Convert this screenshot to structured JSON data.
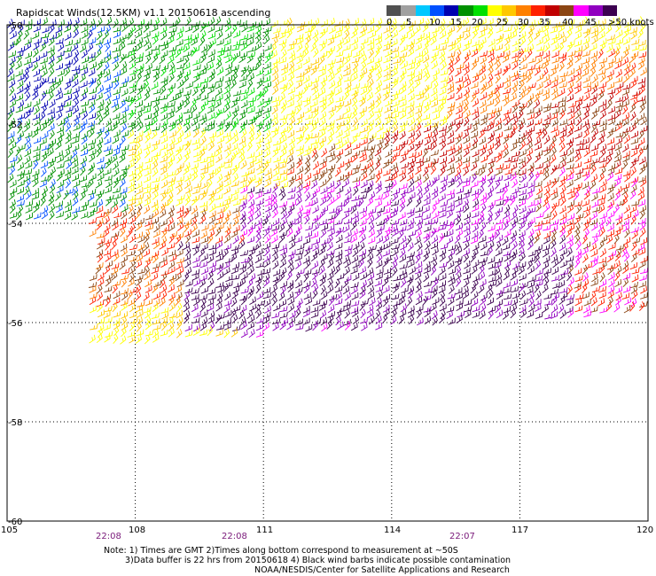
{
  "title": "Rapidscat Winds(12.5KM) v1.1 20150618 ascending",
  "legend": {
    "labels": [
      "0",
      "5",
      "10",
      "15",
      "20",
      "25",
      "30",
      "35",
      "40",
      "45",
      ">50 knots"
    ],
    "colors": [
      "#505050",
      "#a0a0a0",
      "#00c8ff",
      "#0050ff",
      "#0000b0",
      "#009000",
      "#00e000",
      "#ffff00",
      "#ffc800",
      "#ff8000",
      "#ff2000",
      "#c00000",
      "#8b4513",
      "#ff00ff",
      "#9000c0",
      "#3c0050"
    ]
  },
  "lat_labels": [
    "-50",
    "-52",
    "-54",
    "-56",
    "-58",
    "-60"
  ],
  "lon_labels": [
    "105",
    "108",
    "111",
    "114",
    "117",
    "120"
  ],
  "time_labels": [
    "22:08",
    "22:08",
    "22:07"
  ],
  "notes": [
    "Note: 1) Times are GMT 2)Times along bottom correspond to measurement at ~50S",
    "3)Data buffer is 22 hrs from 20150618 4) Black wind barbs indicate possible contamination",
    "NOAA/NESDIS/Center for Satellite Applications and Research"
  ]
}
